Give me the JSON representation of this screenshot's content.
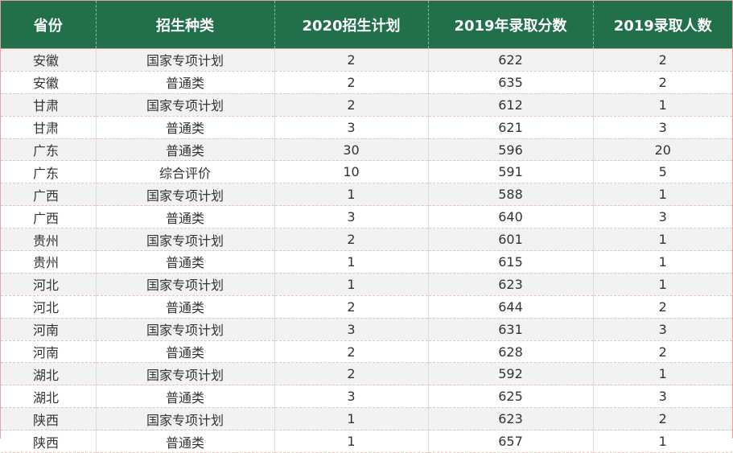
{
  "headers": [
    "省份",
    "招生种类",
    "2020招生计划",
    "2019年录取分数",
    "2019录取人数"
  ],
  "rows": [
    [
      "安徽",
      "国家专项计划",
      "2",
      "622",
      "2"
    ],
    [
      "安徽",
      "普通类",
      "2",
      "635",
      "2"
    ],
    [
      "甘肃",
      "国家专项计划",
      "2",
      "612",
      "1"
    ],
    [
      "甘肃",
      "普通类",
      "3",
      "621",
      "3"
    ],
    [
      "广东",
      "普通类",
      "30",
      "596",
      "20"
    ],
    [
      "广东",
      "综合评价",
      "10",
      "591",
      "5"
    ],
    [
      "广西",
      "国家专项计划",
      "1",
      "588",
      "1"
    ],
    [
      "广西",
      "普通类",
      "3",
      "640",
      "3"
    ],
    [
      "贵州",
      "国家专项计划",
      "2",
      "601",
      "1"
    ],
    [
      "贵州",
      "普通类",
      "1",
      "615",
      "1"
    ],
    [
      "河北",
      "国家专项计划",
      "1",
      "623",
      "1"
    ],
    [
      "河北",
      "普通类",
      "2",
      "644",
      "2"
    ],
    [
      "河南",
      "国家专项计划",
      "3",
      "631",
      "3"
    ],
    [
      "河南",
      "普通类",
      "2",
      "628",
      "2"
    ],
    [
      "湖北",
      "国家专项计划",
      "2",
      "592",
      "1"
    ],
    [
      "湖北",
      "普通类",
      "3",
      "625",
      "3"
    ],
    [
      "陕西",
      "国家专项计划",
      "1",
      "623",
      "2"
    ],
    [
      "陕西",
      "普通类",
      "1",
      "657",
      "1"
    ]
  ],
  "colors": {
    "header_bg": "#21704a",
    "header_text": "#ffffff",
    "stripe": "#f2f2f2"
  }
}
